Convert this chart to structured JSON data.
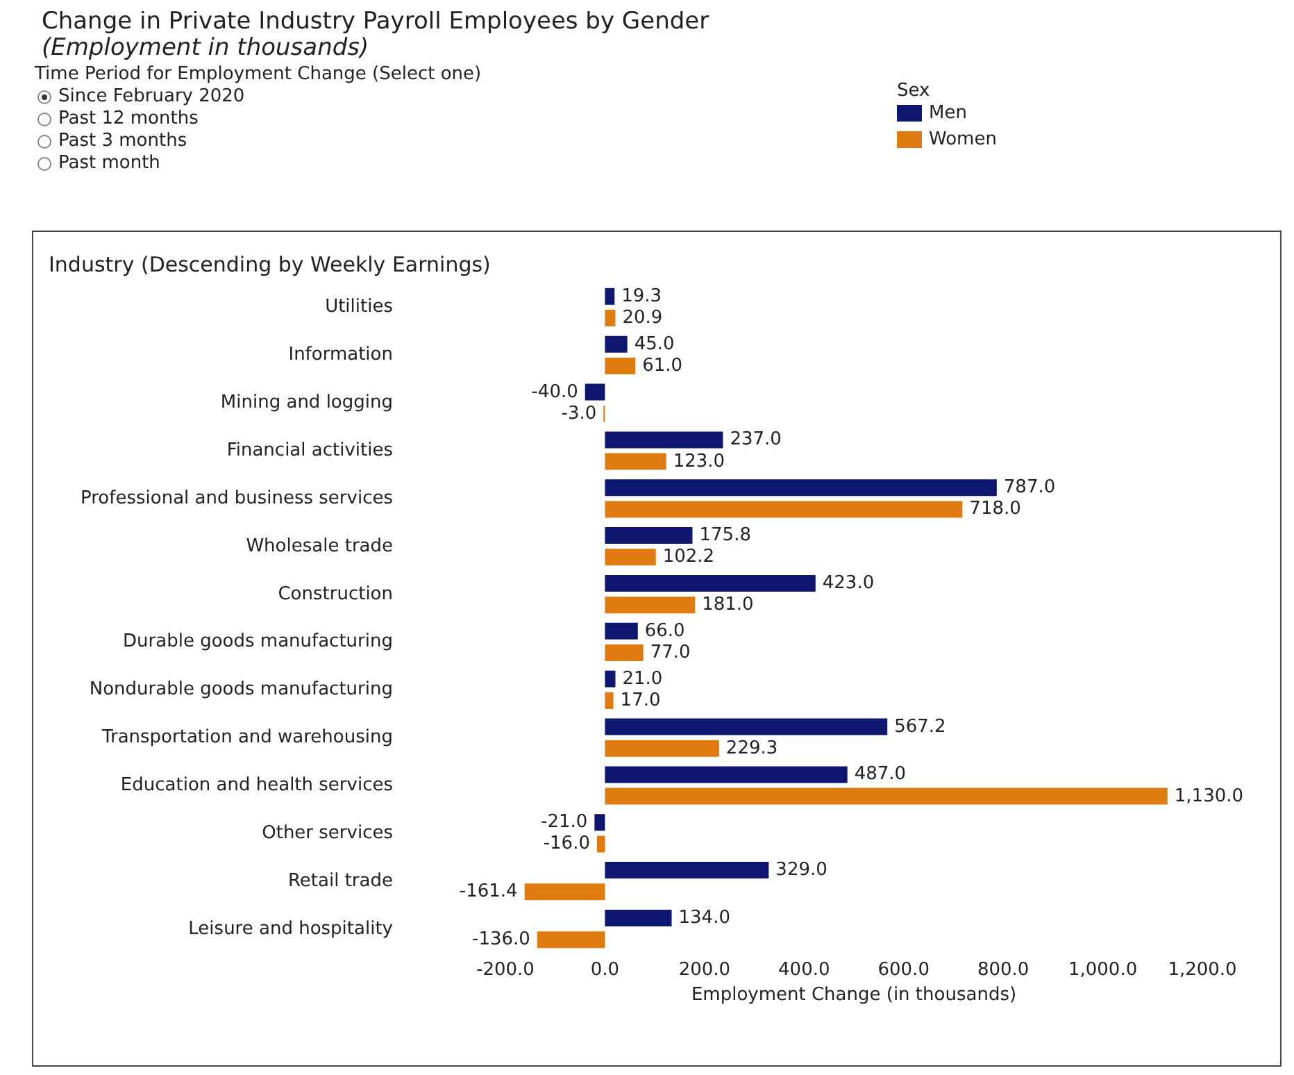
{
  "chart_data": {
    "type": "bar",
    "orientation": "horizontal",
    "title": "Change in Private Industry Payroll Employees by Gender",
    "subtitle": "(Employment in thousands)",
    "annotations": [
      "Time Period for Employment Change (Select one)",
      "Since February 2020",
      "Past 12 months",
      "Past 3 months",
      "Past month"
    ],
    "ylabel": "Industry (Descending by Weekly Earnings)",
    "xlabel": "Employment Change (in thousands)",
    "legend_title": "Sex",
    "legend": "top right",
    "grid": false,
    "categories": [
      "Utilities",
      "Information",
      "Mining and logging",
      "Financial activities",
      "Professional and business services",
      "Wholesale trade",
      "Construction",
      "Durable goods manufacturing",
      "Nondurable goods manufacturing",
      "Transportation and warehousing",
      "Education and health services",
      "Other services",
      "Retail trade",
      "Leisure and hospitality"
    ],
    "series": [
      {
        "name": "Men",
        "color": "#0f1670",
        "values": [
          19.3,
          45.0,
          -40.0,
          237.0,
          787.0,
          175.8,
          423.0,
          66.0,
          21.0,
          567.2,
          487.0,
          -21.0,
          329.0,
          134.0
        ],
        "value_labels": [
          "19.3",
          "45.0",
          "-40.0",
          "237.0",
          "787.0",
          "175.8",
          "423.0",
          "66.0",
          "21.0",
          "567.2",
          "487.0",
          "-21.0",
          "329.0",
          "134.0"
        ]
      },
      {
        "name": "Women",
        "color": "#e07b12",
        "values": [
          20.9,
          61.0,
          -3.0,
          123.0,
          718.0,
          102.2,
          181.0,
          77.0,
          17.0,
          229.3,
          1130.0,
          -16.0,
          -161.4,
          -136.0
        ],
        "value_labels": [
          "20.9",
          "61.0",
          "-3.0",
          "123.0",
          "718.0",
          "102.2",
          "181.0",
          "77.0",
          "17.0",
          "229.3",
          "1,130.0",
          "-16.0",
          "-161.4",
          "-136.0"
        ]
      }
    ],
    "xlim": [
      -200,
      1200
    ],
    "xticks": [
      {
        "value": -200,
        "label": "-200.0"
      },
      {
        "value": 0,
        "label": "0.0"
      },
      {
        "value": 200,
        "label": "200.0"
      },
      {
        "value": 400,
        "label": "400.0"
      },
      {
        "value": 600,
        "label": "600.0"
      },
      {
        "value": 800,
        "label": "800.0"
      },
      {
        "value": 1000,
        "label": "1,000.0"
      },
      {
        "value": 1200,
        "label": "1,200.0"
      }
    ]
  }
}
